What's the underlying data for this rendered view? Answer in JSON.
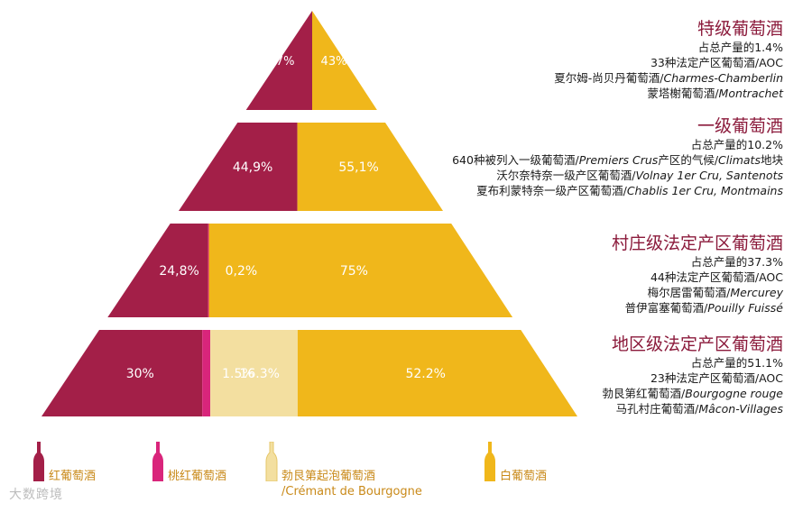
{
  "chart_data": {
    "type": "bar",
    "subtype": "stacked-pyramid",
    "colors": {
      "red": "#a31f48",
      "rose": "#d9257b",
      "cremant": "#f3dfa0",
      "white": "#f0b71b"
    },
    "series": [
      {
        "name": "红葡萄酒",
        "color": "#a31f48"
      },
      {
        "name": "桃红葡萄酒",
        "color": "#d9257b"
      },
      {
        "name": "勃艮第起泡葡萄酒",
        "color": "#f3dfa0"
      },
      {
        "name": "白葡萄酒",
        "color": "#f0b71b"
      }
    ],
    "tiers": [
      {
        "segments": [
          {
            "series": "红葡萄酒",
            "value": 57,
            "label": "57%"
          },
          {
            "series": "白葡萄酒",
            "value": 43,
            "label": "43%"
          }
        ]
      },
      {
        "segments": [
          {
            "series": "红葡萄酒",
            "value": 44.9,
            "label": "44,9%"
          },
          {
            "series": "白葡萄酒",
            "value": 55.1,
            "label": "55,1%"
          }
        ]
      },
      {
        "segments": [
          {
            "series": "红葡萄酒",
            "value": 24.8,
            "label": "24,8%"
          },
          {
            "series": "桃红葡萄酒",
            "value": 0.2,
            "label": "0,2%"
          },
          {
            "series": "白葡萄酒",
            "value": 75,
            "label": "75%"
          }
        ]
      },
      {
        "segments": [
          {
            "series": "红葡萄酒",
            "value": 30,
            "label": "30%"
          },
          {
            "series": "桃红葡萄酒",
            "value": 1.5,
            "label": "1.5%"
          },
          {
            "series": "勃艮第起泡葡萄酒",
            "value": 16.3,
            "label": "16.3%"
          },
          {
            "series": "白葡萄酒",
            "value": 52.2,
            "label": "52.2%"
          }
        ]
      }
    ]
  },
  "tiers_info": [
    {
      "title": "特级葡萄酒",
      "share": "占总产量的1.4%",
      "lines": [
        {
          "cn": "33种法定产区葡萄酒/AOC",
          "it": ""
        },
        {
          "cn": "夏尔姆-尚贝丹葡萄酒/",
          "it": "Charmes-Chamberlin"
        },
        {
          "cn": "蒙塔榭葡萄酒/",
          "it": "Montrachet"
        }
      ]
    },
    {
      "title": "一级葡萄酒",
      "share": "占总产量的10.2%",
      "lines": [
        {
          "cn": "640种被列入一级葡萄酒/",
          "it": "Premiers Crus",
          "cn2": "产区的气候/",
          "it2": "Climats",
          "cn3": "地块"
        },
        {
          "cn": "沃尔奈特奈一级产区葡萄酒/",
          "it": "Volnay 1er Cru, Santenots"
        },
        {
          "cn": "夏布利蒙特奈一级产区葡萄酒/",
          "it": "Chablis 1er Cru, Montmains"
        }
      ]
    },
    {
      "title": "村庄级法定产区葡萄酒",
      "share": "占总产量的37.3%",
      "lines": [
        {
          "cn": "44种法定产区葡萄酒/AOC",
          "it": ""
        },
        {
          "cn": "梅尔居雷葡萄酒/",
          "it": "Mercurey"
        },
        {
          "cn": "普伊富塞葡萄酒/",
          "it": "Pouilly Fuissé"
        }
      ]
    },
    {
      "title": "地区级法定产区葡萄酒",
      "share": "占总产量的51.1%",
      "lines": [
        {
          "cn": "23种法定产区葡萄酒/AOC",
          "it": ""
        },
        {
          "cn": "勃艮第红葡萄酒/",
          "it": "Bourgogne rouge"
        },
        {
          "cn": "马孔村庄葡萄酒/",
          "it": "Mâcon-Villages"
        }
      ]
    }
  ],
  "legend": [
    {
      "label": "红葡萄酒",
      "label2": "",
      "icon": "red-wine-bottle-icon",
      "color": "#a31f48"
    },
    {
      "label": "桃红葡萄酒",
      "label2": "",
      "icon": "rose-wine-bottle-icon",
      "color": "#d9257b"
    },
    {
      "label": "勃艮第起泡葡萄酒",
      "label2": "/Crémant de Bourgogne",
      "icon": "sparkling-wine-bottle-icon",
      "color": "#f3dfa0"
    },
    {
      "label": "白葡萄酒",
      "label2": "",
      "icon": "white-wine-bottle-icon",
      "color": "#f0b71b"
    }
  ],
  "watermark": "大数跨境"
}
